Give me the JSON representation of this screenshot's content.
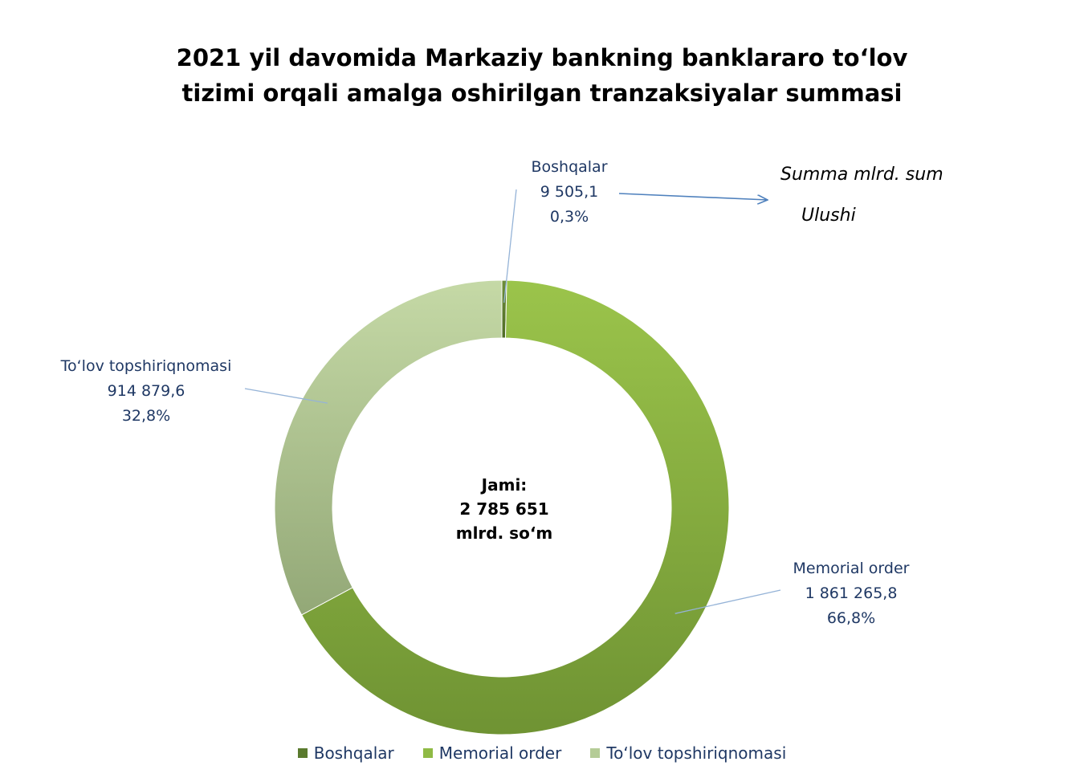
{
  "chart_data": {
    "type": "pie",
    "variant": "donut",
    "title_lines": [
      "2021 yil davomida Markaziy bankning banklararo to‘lov",
      "tizimi orqali amalga oshirilgan tranzaksiyalar summasi"
    ],
    "annotation": {
      "value_hint": "Summa mlrd. sum",
      "share_hint": "Ulushi"
    },
    "center": {
      "line1": "Jami:",
      "line2": "2 785 651",
      "line3": "mlrd. so‘m"
    },
    "unit": "mlrd. so‘m",
    "slices": [
      {
        "name": "Boshqalar",
        "value": 9505.1,
        "value_label": "9 505,1",
        "share": 0.3,
        "share_label": "0,3%",
        "color": "#5a7a2e"
      },
      {
        "name": "Memorial order",
        "value": 1861265.8,
        "value_label": "1 861 265,8",
        "share": 66.8,
        "share_label": "66,8%",
        "color": "#8fba45"
      },
      {
        "name": "To‘lov topshiriqnomasi",
        "value": 914879.6,
        "value_label": "914 879,6",
        "share": 32.8,
        "share_label": "32,8%",
        "color": "#b5cc97"
      }
    ],
    "legend_position": "bottom"
  }
}
